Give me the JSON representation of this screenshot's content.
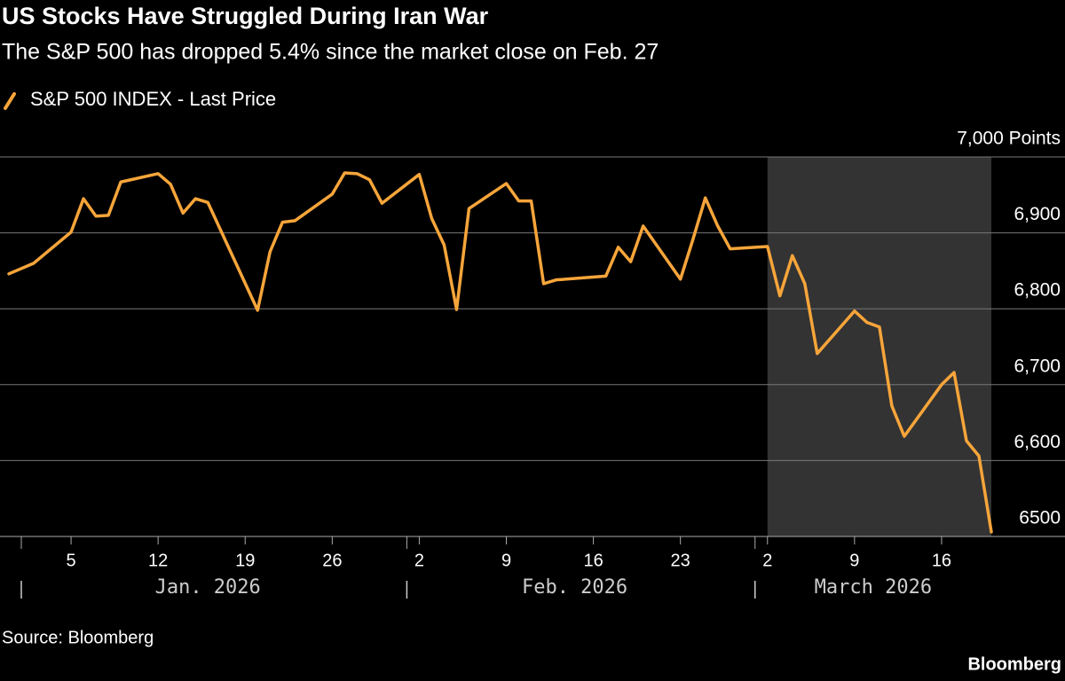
{
  "chart_data": {
    "type": "line",
    "title": "US Stocks Have Struggled During Iran War",
    "subtitle": "The S&P 500 has dropped 5.4% since the market close on Feb. 27",
    "source": "Source: Bloomberg",
    "brand": "Bloomberg",
    "x": [
      0,
      2,
      5,
      6,
      7,
      8,
      9,
      12,
      13,
      14,
      15,
      16,
      20,
      21,
      22,
      23,
      26,
      27,
      28,
      29,
      30,
      33,
      34,
      35,
      36,
      37,
      40,
      41,
      42,
      43,
      44,
      48,
      49,
      50,
      51,
      54,
      55,
      56,
      57,
      58,
      61,
      62,
      63,
      64,
      65,
      68,
      69,
      70,
      71,
      72,
      75,
      76,
      77,
      78,
      79
    ],
    "series": [
      {
        "name": "S&P 500 INDEX - Last Price",
        "color": "#f7a53a",
        "values": [
          6846,
          6860,
          6901,
          6945,
          6922,
          6923,
          6967,
          6978,
          6964,
          6926,
          6945,
          6940,
          6798,
          6875,
          6914,
          6916,
          6951,
          6979,
          6978,
          6970,
          6939,
          6977,
          6919,
          6884,
          6799,
          6932,
          6965,
          6942,
          6942,
          6833,
          6838,
          6843,
          6881,
          6862,
          6909,
          6839,
          6891,
          6946,
          6909,
          6879,
          6882,
          6817,
          6870,
          6833,
          6741,
          6797,
          6782,
          6776,
          6672,
          6632,
          6700,
          6716,
          6626,
          6606,
          6506
        ]
      }
    ],
    "xlim": [
      0,
      79
    ],
    "xticks": [
      5,
      12,
      19,
      26,
      {
        "value": 33,
        "label": "2"
      },
      {
        "value": 40,
        "label": "9"
      },
      {
        "value": 47,
        "label": "16"
      },
      {
        "value": 54,
        "label": "23"
      },
      {
        "value": 61,
        "label": "2"
      },
      {
        "value": 68,
        "label": "9"
      },
      {
        "value": 75,
        "label": "16"
      }
    ],
    "months": [
      {
        "label": "Jan. 2026",
        "start": 1,
        "end": 31
      },
      {
        "label": "Feb. 2026",
        "start": 32,
        "end": 59
      },
      {
        "label": "March 2026",
        "start": 60,
        "end": 79
      }
    ],
    "shade": [
      61,
      79
    ],
    "shade_color": "#333333",
    "ylim": [
      6500,
      7000
    ],
    "yticks": [
      6500,
      {
        "value": 6600,
        "label": "6,600"
      },
      {
        "value": 6700,
        "label": "6,700"
      },
      {
        "value": 6800,
        "label": "6,800"
      },
      {
        "value": 6900,
        "label": "6,900"
      },
      {
        "value": 7000,
        "label": "7,000 Points"
      }
    ],
    "grid": true
  }
}
